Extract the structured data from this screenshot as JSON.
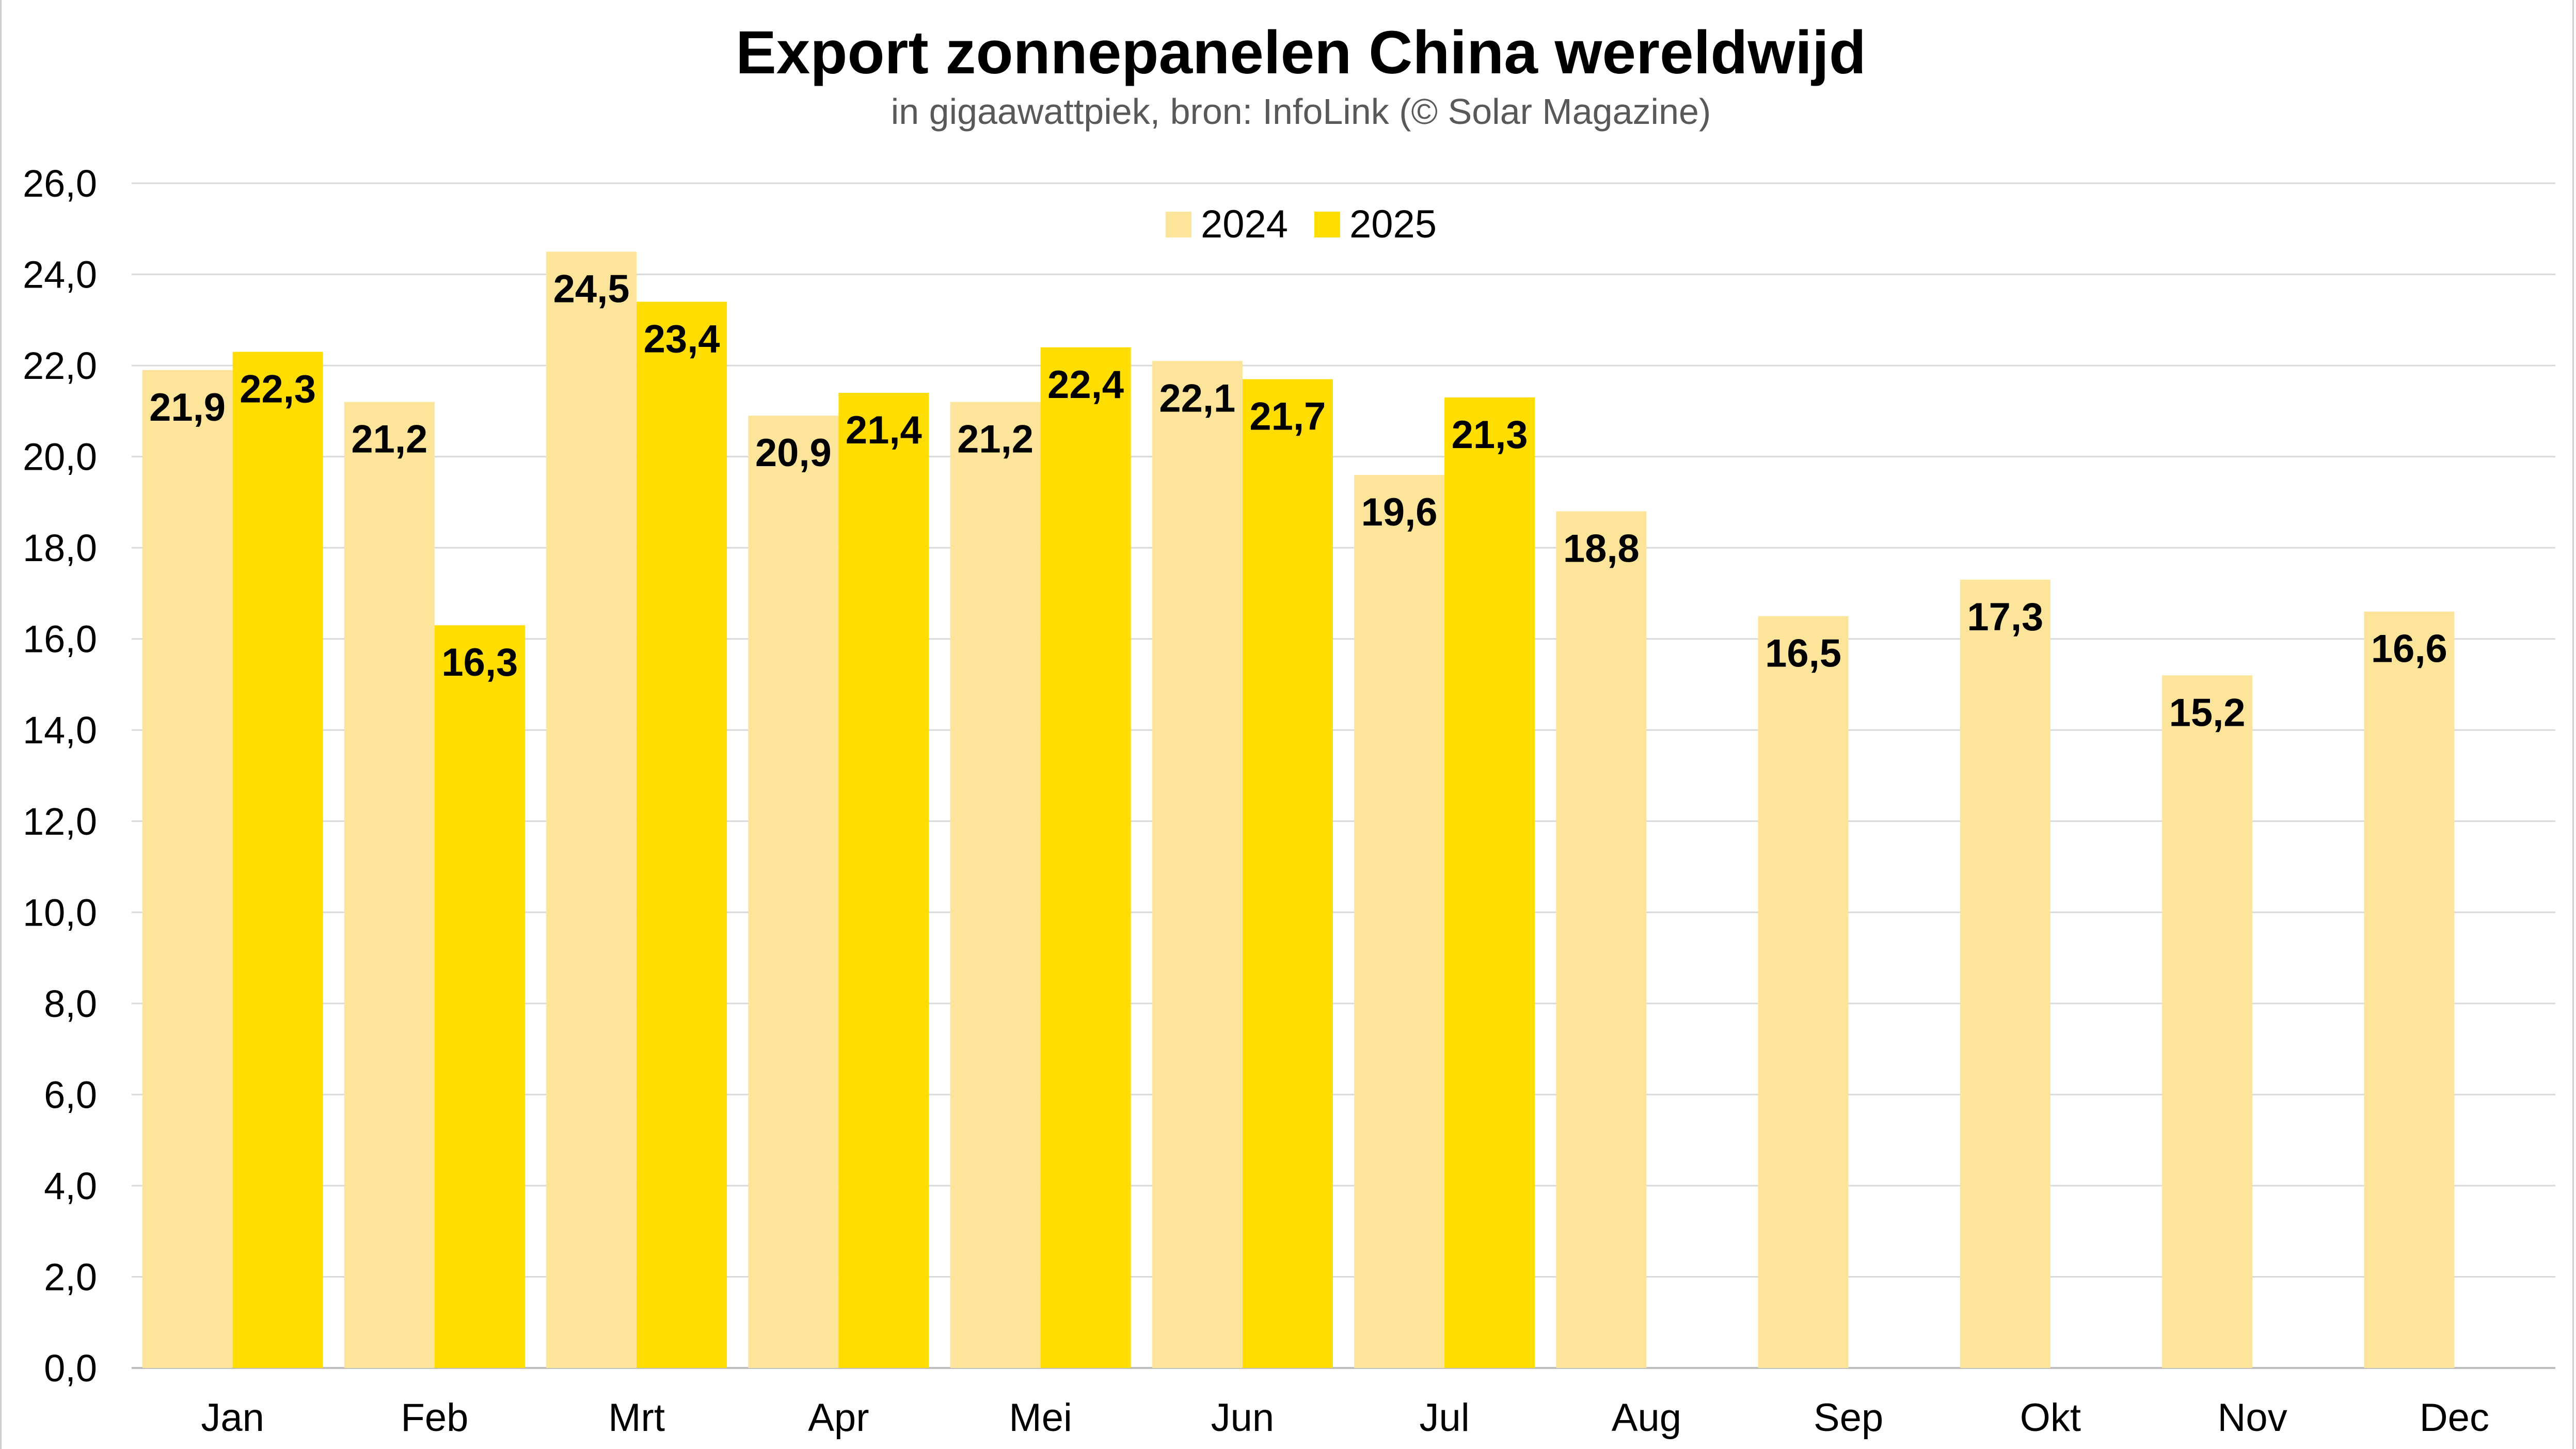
{
  "colors": {
    "series_2024": "#FCE59A",
    "series_2025": "#FFDD00",
    "grid": "#D9D9D9",
    "axis": "#BFBFBF"
  },
  "chart_data": {
    "type": "bar",
    "title": "Export zonnepanelen China wereldwijd",
    "subtitle": "in gigaawattpiek, bron: InfoLink (© Solar Magazine)",
    "categories": [
      "Jan",
      "Feb",
      "Mrt",
      "Apr",
      "Mei",
      "Jun",
      "Jul",
      "Aug",
      "Sep",
      "Okt",
      "Nov",
      "Dec"
    ],
    "series": [
      {
        "name": "2024",
        "values": [
          21.9,
          21.2,
          24.5,
          20.9,
          21.2,
          22.1,
          19.6,
          18.8,
          16.5,
          17.3,
          15.2,
          16.6
        ],
        "labels": [
          "21,9",
          "21,2",
          "24,5",
          "20,9",
          "21,2",
          "22,1",
          "19,6",
          "18,8",
          "16,5",
          "17,3",
          "15,2",
          "16,6"
        ]
      },
      {
        "name": "2025",
        "values": [
          22.3,
          16.3,
          23.4,
          21.4,
          22.4,
          21.7,
          21.3,
          null,
          null,
          null,
          null,
          null
        ],
        "labels": [
          "22,3",
          "16,3",
          "23,4",
          "21,4",
          "22,4",
          "21,7",
          "21,3",
          null,
          null,
          null,
          null,
          null
        ]
      }
    ],
    "ylim": [
      0,
      26
    ],
    "yticks": [
      "0,0",
      "2,0",
      "4,0",
      "6,0",
      "8,0",
      "10,0",
      "12,0",
      "14,0",
      "16,0",
      "18,0",
      "20,0",
      "22,0",
      "24,0",
      "26,0"
    ],
    "ytick_values": [
      0,
      2,
      4,
      6,
      8,
      10,
      12,
      14,
      16,
      18,
      20,
      22,
      24,
      26
    ],
    "xlabel": "",
    "ylabel": "",
    "grid": true,
    "legend": "top-center"
  }
}
